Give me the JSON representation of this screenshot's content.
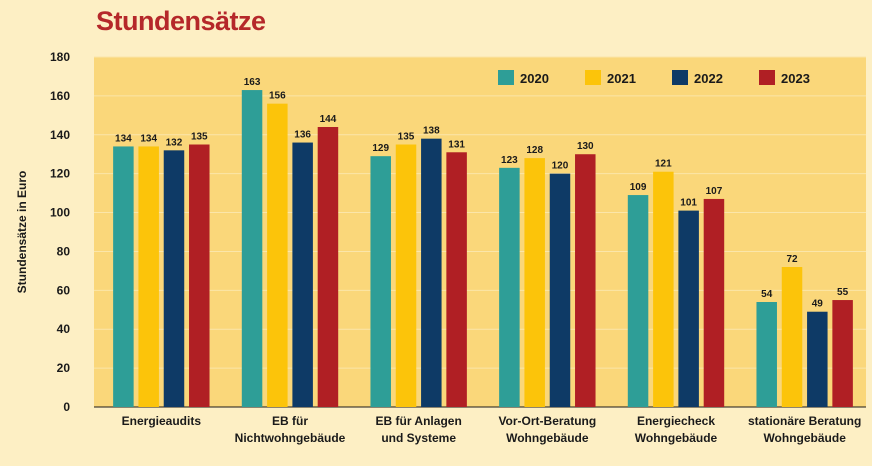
{
  "chart_data": {
    "type": "bar",
    "title": "Stundensätze",
    "xlabel": "",
    "ylabel": "Stundensätze in Euro",
    "ylim": [
      0,
      180
    ],
    "yticks": [
      0,
      20,
      40,
      60,
      80,
      100,
      120,
      140,
      160,
      180
    ],
    "grid": true,
    "legend_position": "top-right",
    "categories": [
      [
        "Energieaudits"
      ],
      [
        "EB für",
        "Nichtwohngebäude"
      ],
      [
        "EB für Anlagen",
        "und Systeme"
      ],
      [
        "Vor-Ort-Beratung",
        "Wohngebäude"
      ],
      [
        "Energiecheck",
        "Wohngebäude"
      ],
      [
        "stationäre Beratung",
        "Wohngebäude"
      ]
    ],
    "series": [
      {
        "name": "2020",
        "color": "#2e9e97",
        "values": [
          134,
          163,
          129,
          123,
          109,
          54
        ]
      },
      {
        "name": "2021",
        "color": "#fcc40a",
        "values": [
          134,
          156,
          135,
          128,
          121,
          72
        ]
      },
      {
        "name": "2022",
        "color": "#0e3a66",
        "values": [
          132,
          136,
          138,
          120,
          101,
          49
        ]
      },
      {
        "name": "2023",
        "color": "#b01f24",
        "values": [
          135,
          144,
          131,
          130,
          107,
          55
        ]
      }
    ]
  },
  "colors": {
    "plot_background": "#fad77a",
    "page_background": "#fdefc4",
    "gridline": "#fbe6a9",
    "title": "#b5282a"
  }
}
